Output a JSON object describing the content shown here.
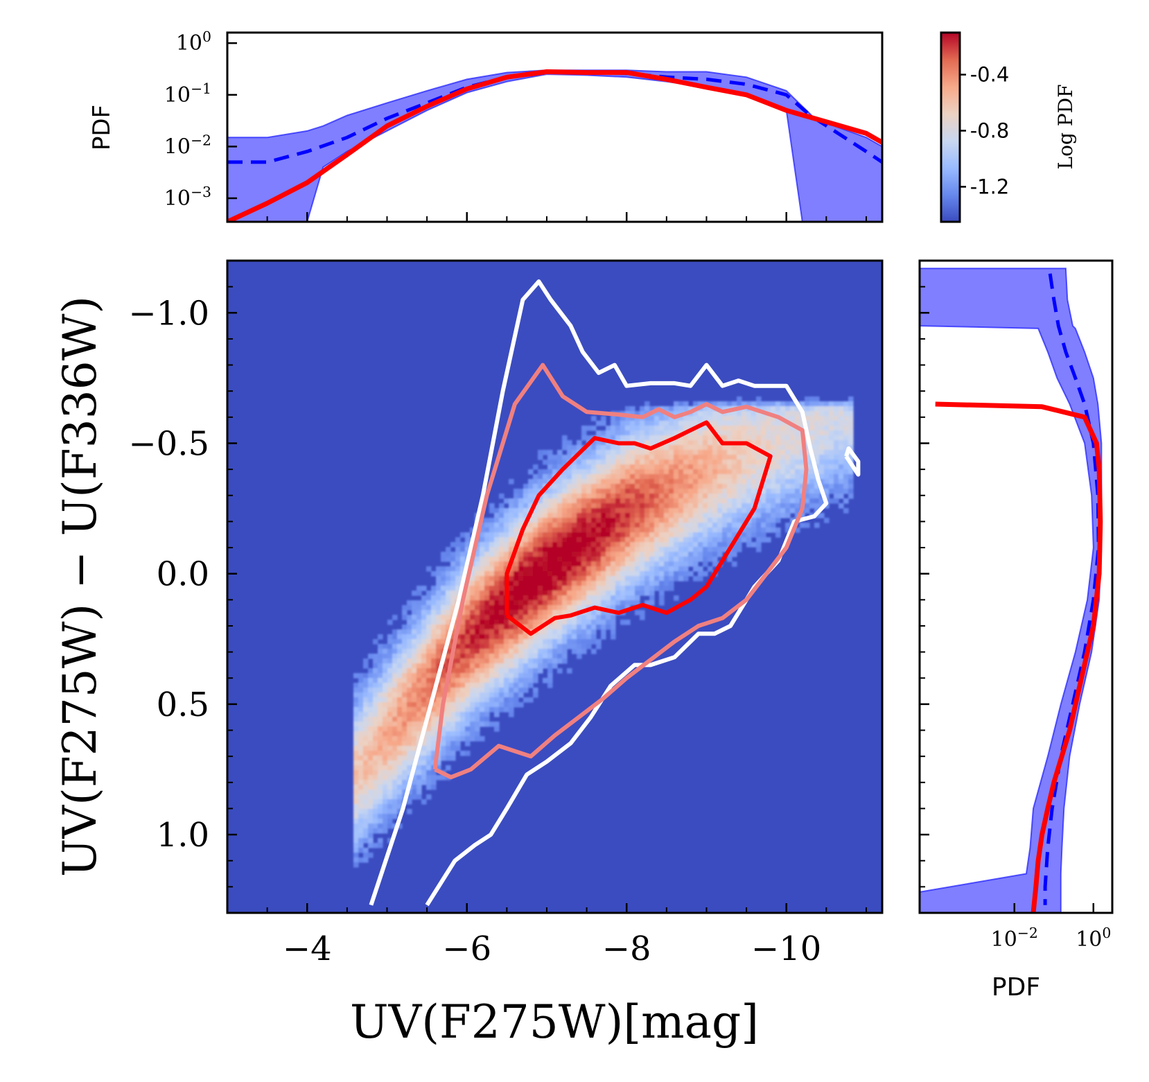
{
  "chart_data": [
    {
      "type": "heatmap",
      "name": "main-2d-histogram",
      "xlabel": "UV(F275W)[mag]",
      "ylabel": "UV(F275W) − U(F336W)",
      "xlim": [
        -3.0,
        -11.2
      ],
      "ylim": [
        1.3,
        -1.2
      ],
      "x_ticks": [
        {
          "value": -4,
          "label": "−4"
        },
        {
          "value": -6,
          "label": "−6"
        },
        {
          "value": -8,
          "label": "−8"
        },
        {
          "value": -10,
          "label": "−10"
        }
      ],
      "y_ticks": [
        {
          "value": -1.0,
          "label": "−1.0"
        },
        {
          "value": -0.5,
          "label": "−0.5"
        },
        {
          "value": 0.0,
          "label": "0.0"
        },
        {
          "value": 0.5,
          "label": "0.5"
        },
        {
          "value": 1.0,
          "label": "1.0"
        }
      ],
      "density_ridge": {
        "x": [
          -5.0,
          -6.0,
          -7.0,
          -8.0,
          -9.0,
          -10.0
        ],
        "y": [
          0.62,
          0.25,
          -0.02,
          -0.24,
          -0.4,
          -0.52
        ]
      },
      "background_color": "#3b4cc0",
      "contours": [
        {
          "name": "outer",
          "color": "#ffffff",
          "points": [
            [
              -4.8,
              1.27
            ],
            [
              -5.2,
              0.9
            ],
            [
              -5.55,
              0.5
            ],
            [
              -5.9,
              0.1
            ],
            [
              -6.2,
              -0.3
            ],
            [
              -6.45,
              -0.7
            ],
            [
              -6.7,
              -1.05
            ],
            [
              -6.9,
              -1.12
            ],
            [
              -7.05,
              -1.05
            ],
            [
              -7.3,
              -0.95
            ],
            [
              -7.45,
              -0.85
            ],
            [
              -7.65,
              -0.77
            ],
            [
              -7.85,
              -0.8
            ],
            [
              -8.0,
              -0.72
            ],
            [
              -8.3,
              -0.73
            ],
            [
              -8.6,
              -0.73
            ],
            [
              -8.8,
              -0.72
            ],
            [
              -9.0,
              -0.8
            ],
            [
              -9.2,
              -0.72
            ],
            [
              -9.4,
              -0.74
            ],
            [
              -9.6,
              -0.72
            ],
            [
              -10.0,
              -0.72
            ],
            [
              -10.2,
              -0.62
            ],
            [
              -10.3,
              -0.48
            ],
            [
              -10.4,
              -0.36
            ],
            [
              -10.5,
              -0.27
            ],
            [
              -10.35,
              -0.22
            ],
            [
              -10.1,
              -0.2
            ],
            [
              -9.9,
              -0.05
            ],
            [
              -9.6,
              0.05
            ],
            [
              -9.3,
              0.2
            ],
            [
              -9.1,
              0.23
            ],
            [
              -8.9,
              0.23
            ],
            [
              -8.6,
              0.32
            ],
            [
              -8.3,
              0.35
            ],
            [
              -8.1,
              0.35
            ],
            [
              -7.8,
              0.43
            ],
            [
              -7.55,
              0.55
            ],
            [
              -7.3,
              0.65
            ],
            [
              -7.0,
              0.72
            ],
            [
              -6.75,
              0.77
            ],
            [
              -6.5,
              0.9
            ],
            [
              -6.3,
              1.0
            ],
            [
              -6.1,
              1.04
            ],
            [
              -5.85,
              1.1
            ],
            [
              -5.5,
              1.27
            ]
          ]
        },
        {
          "name": "outer-islet",
          "color": "#ffffff",
          "points": [
            [
              -10.75,
              -0.45
            ],
            [
              -10.9,
              -0.38
            ],
            [
              -10.9,
              -0.43
            ],
            [
              -10.78,
              -0.48
            ],
            [
              -10.75,
              -0.45
            ]
          ]
        },
        {
          "name": "middle",
          "color": "#f08080",
          "points": [
            [
              -5.6,
              0.75
            ],
            [
              -5.7,
              0.5
            ],
            [
              -5.95,
              0.1
            ],
            [
              -6.25,
              -0.3
            ],
            [
              -6.6,
              -0.65
            ],
            [
              -6.95,
              -0.8
            ],
            [
              -7.2,
              -0.68
            ],
            [
              -7.5,
              -0.62
            ],
            [
              -7.9,
              -0.61
            ],
            [
              -8.2,
              -0.6
            ],
            [
              -8.4,
              -0.63
            ],
            [
              -8.6,
              -0.6
            ],
            [
              -8.8,
              -0.62
            ],
            [
              -9.0,
              -0.65
            ],
            [
              -9.2,
              -0.62
            ],
            [
              -9.5,
              -0.64
            ],
            [
              -9.7,
              -0.62
            ],
            [
              -9.9,
              -0.6
            ],
            [
              -10.2,
              -0.55
            ],
            [
              -10.25,
              -0.4
            ],
            [
              -10.2,
              -0.25
            ],
            [
              -10.0,
              -0.1
            ],
            [
              -9.8,
              -0.02
            ],
            [
              -9.5,
              0.1
            ],
            [
              -9.2,
              0.17
            ],
            [
              -8.9,
              0.2
            ],
            [
              -8.6,
              0.26
            ],
            [
              -8.3,
              0.33
            ],
            [
              -8.0,
              0.4
            ],
            [
              -7.7,
              0.48
            ],
            [
              -7.4,
              0.55
            ],
            [
              -7.1,
              0.62
            ],
            [
              -6.8,
              0.7
            ],
            [
              -6.4,
              0.66
            ],
            [
              -6.05,
              0.75
            ],
            [
              -5.8,
              0.78
            ],
            [
              -5.6,
              0.75
            ]
          ]
        },
        {
          "name": "inner",
          "color": "#ff0000",
          "points": [
            [
              -6.5,
              0.16
            ],
            [
              -6.5,
              0.0
            ],
            [
              -6.7,
              -0.17
            ],
            [
              -6.9,
              -0.3
            ],
            [
              -7.2,
              -0.4
            ],
            [
              -7.6,
              -0.52
            ],
            [
              -7.9,
              -0.5
            ],
            [
              -8.1,
              -0.5
            ],
            [
              -8.3,
              -0.48
            ],
            [
              -8.6,
              -0.52
            ],
            [
              -8.8,
              -0.55
            ],
            [
              -9.0,
              -0.58
            ],
            [
              -9.2,
              -0.5
            ],
            [
              -9.5,
              -0.5
            ],
            [
              -9.8,
              -0.45
            ],
            [
              -9.6,
              -0.25
            ],
            [
              -9.4,
              -0.15
            ],
            [
              -9.2,
              -0.05
            ],
            [
              -9.0,
              0.05
            ],
            [
              -8.8,
              0.1
            ],
            [
              -8.5,
              0.15
            ],
            [
              -8.2,
              0.12
            ],
            [
              -7.9,
              0.15
            ],
            [
              -7.6,
              0.13
            ],
            [
              -7.3,
              0.16
            ],
            [
              -7.1,
              0.17
            ],
            [
              -6.8,
              0.23
            ],
            [
              -6.5,
              0.16
            ]
          ]
        }
      ]
    },
    {
      "type": "line",
      "name": "top-marginal-pdf",
      "ylabel": "PDF",
      "yscale": "log",
      "xlim": [
        -3.0,
        -11.2
      ],
      "ylim": [
        0.00035,
        1.6
      ],
      "y_ticks": [
        {
          "value": 1,
          "base": "10",
          "exp": "0"
        },
        {
          "value": 0.1,
          "base": "10",
          "exp": "−1"
        },
        {
          "value": 0.01,
          "base": "10",
          "exp": "−2"
        },
        {
          "value": 0.001,
          "base": "10",
          "exp": "−3"
        }
      ],
      "series": [
        {
          "name": "model-median",
          "style": "dashed",
          "color": "#0000ff",
          "x": [
            -3.0,
            -3.5,
            -4.0,
            -4.5,
            -5.0,
            -5.5,
            -6.0,
            -6.5,
            -7.0,
            -7.5,
            -8.0,
            -8.5,
            -9.0,
            -9.5,
            -10.0,
            -10.3,
            -10.6,
            -11.0,
            -11.2
          ],
          "y": [
            0.005,
            0.005,
            0.008,
            0.015,
            0.035,
            0.07,
            0.14,
            0.22,
            0.28,
            0.27,
            0.26,
            0.22,
            0.2,
            0.16,
            0.1,
            0.04,
            0.02,
            0.008,
            0.005
          ]
        },
        {
          "name": "observed",
          "style": "solid",
          "color": "#ff0000",
          "x": [
            -3.0,
            -3.5,
            -4.0,
            -4.5,
            -5.0,
            -5.5,
            -6.0,
            -6.5,
            -7.0,
            -7.5,
            -8.0,
            -8.5,
            -9.0,
            -9.5,
            -10.0,
            -10.5,
            -11.0,
            -11.2
          ],
          "y": [
            0.00035,
            0.0008,
            0.002,
            0.007,
            0.025,
            0.06,
            0.13,
            0.22,
            0.28,
            0.27,
            0.27,
            0.2,
            0.14,
            0.1,
            0.05,
            0.03,
            0.018,
            0.012
          ]
        }
      ],
      "band": {
        "name": "model-range",
        "x": [
          -3.0,
          -3.5,
          -4.0,
          -4.2,
          -4.5,
          -5.0,
          -5.5,
          -6.0,
          -6.5,
          -7.0,
          -7.5,
          -8.0,
          -8.5,
          -9.0,
          -9.5,
          -10.0,
          -10.2,
          -10.4,
          -10.6,
          -11.0,
          -11.2
        ],
        "upper": [
          0.015,
          0.015,
          0.02,
          0.025,
          0.04,
          0.07,
          0.12,
          0.2,
          0.27,
          0.3,
          0.3,
          0.3,
          0.28,
          0.28,
          0.22,
          0.12,
          0.06,
          0.03,
          0.025,
          0.015,
          0.01
        ],
        "lower": [
          0.00035,
          0.00035,
          0.00035,
          0.004,
          0.008,
          0.02,
          0.05,
          0.11,
          0.18,
          0.25,
          0.24,
          0.22,
          0.18,
          0.14,
          0.1,
          0.05,
          0.00035,
          0.00035,
          0.00035,
          0.00035,
          0.00035
        ]
      }
    },
    {
      "type": "line",
      "name": "right-marginal-pdf",
      "xlabel": "PDF",
      "xscale": "log",
      "xlim": [
        4e-05,
        3.0
      ],
      "ylim": [
        1.3,
        -1.2
      ],
      "x_ticks": [
        {
          "value": 0.01,
          "base": "10",
          "exp": "−2"
        },
        {
          "value": 1,
          "base": "10",
          "exp": "0"
        }
      ],
      "series": [
        {
          "name": "model-median",
          "style": "dashed",
          "color": "#0000ff",
          "y": [
            -1.15,
            -1.05,
            -0.95,
            -0.85,
            -0.75,
            -0.65,
            -0.5,
            -0.3,
            -0.1,
            0.1,
            0.3,
            0.5,
            0.7,
            0.9,
            1.05,
            1.2,
            1.27
          ],
          "x": [
            0.08,
            0.1,
            0.13,
            0.2,
            0.35,
            0.6,
            1.0,
            1.3,
            1.35,
            1.0,
            0.6,
            0.3,
            0.15,
            0.09,
            0.07,
            0.06,
            0.06
          ]
        },
        {
          "name": "observed",
          "style": "solid",
          "color": "#ff0000",
          "y": [
            -0.65,
            -0.64,
            -0.6,
            -0.5,
            -0.4,
            -0.2,
            0.0,
            0.2,
            0.4,
            0.6,
            0.8,
            0.9,
            1.0,
            1.1,
            1.2,
            1.3
          ],
          "x": [
            0.0001,
            0.05,
            0.6,
            1.2,
            1.4,
            1.5,
            1.4,
            1.0,
            0.5,
            0.25,
            0.1,
            0.07,
            0.05,
            0.04,
            0.035,
            0.03
          ]
        }
      ],
      "band": {
        "name": "model-range",
        "y": [
          -1.17,
          -1.05,
          -0.95,
          -0.94,
          -0.85,
          -0.75,
          -0.65,
          -0.5,
          -0.3,
          -0.1,
          0.1,
          0.3,
          0.5,
          0.7,
          0.9,
          1.05,
          1.15,
          1.22,
          1.3
        ],
        "upper": [
          0.2,
          0.22,
          0.3,
          0.35,
          0.6,
          1.0,
          1.3,
          1.6,
          1.6,
          1.6,
          1.4,
          0.9,
          0.45,
          0.25,
          0.18,
          0.16,
          0.15,
          0.15,
          0.15
        ],
        "lower": [
          4e-05,
          4e-05,
          4e-05,
          0.04,
          0.07,
          0.12,
          0.25,
          0.6,
          0.9,
          1.0,
          0.7,
          0.35,
          0.15,
          0.07,
          0.03,
          0.025,
          0.02,
          4e-05,
          4e-05
        ]
      }
    },
    {
      "type": "colorbar",
      "name": "log-pdf-colorbar",
      "label": "Log PDF",
      "range": [
        -1.45,
        -0.1
      ],
      "ticks": [
        {
          "value": -0.4,
          "label": "-0.4"
        },
        {
          "value": -0.8,
          "label": "-0.8"
        },
        {
          "value": -1.2,
          "label": "-1.2"
        }
      ],
      "colormap": [
        "#3b4cc0",
        "#6788ee",
        "#9abbff",
        "#c9d7f0",
        "#edd1c2",
        "#f7a889",
        "#e26952",
        "#b40426"
      ]
    }
  ]
}
